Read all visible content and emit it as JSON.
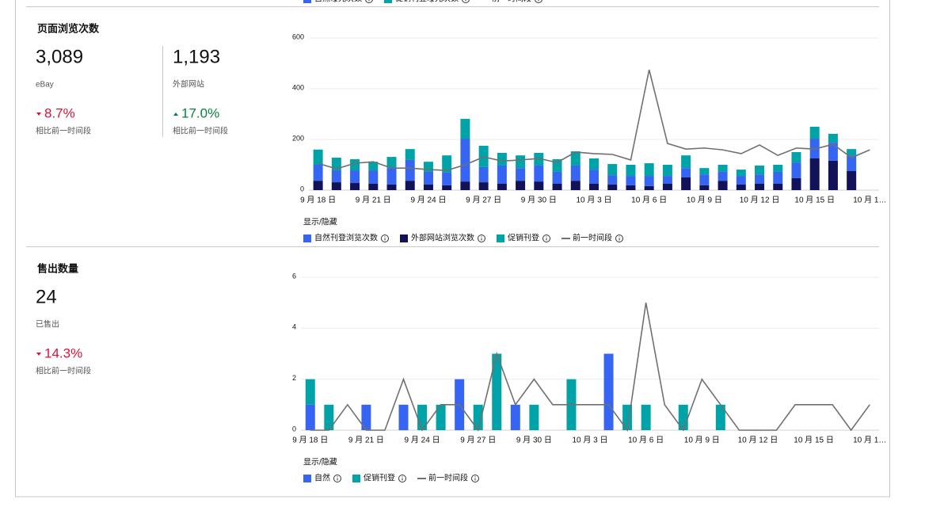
{
  "top_legend": [
    {
      "name": "自然曝光次数",
      "color": "#3665f3",
      "kind": "bar"
    },
    {
      "name": "促销刊登曝光次数",
      "color": "#00a3a7",
      "kind": "bar"
    },
    {
      "name": "前一时间段",
      "color": "#707070",
      "kind": "line"
    }
  ],
  "page_views": {
    "title": "页面浏览次数",
    "metrics": [
      {
        "value": "3,089",
        "source": "eBay",
        "change": "8.7%",
        "direction": "down",
        "compare": "相比前一时间段"
      },
      {
        "value": "1,193",
        "source": "外部网站",
        "change": "17.0%",
        "direction": "up",
        "compare": "相比前一时间段"
      }
    ]
  },
  "items_sold": {
    "title": "售出数量",
    "metrics": [
      {
        "value": "24",
        "source": "已售出",
        "change": "14.3%",
        "direction": "down",
        "compare": "相比前一时间段"
      }
    ]
  },
  "chart_data": [
    {
      "type": "bar",
      "stacked": true,
      "grid": true,
      "legend_title": "显示/隐藏",
      "categories": [
        "9 月 18 日",
        null,
        null,
        "9 月 21 日",
        null,
        null,
        "9 月 24 日",
        null,
        null,
        "9 月 27 日",
        null,
        null,
        "9 月 30 日",
        null,
        null,
        "10 月 3 日",
        null,
        null,
        "10 月 6 日",
        null,
        null,
        "10 月 9 日",
        null,
        null,
        "10 月 12 日",
        null,
        null,
        "10 月 15 日",
        null,
        null,
        "10 月 1…"
      ],
      "ylim": [
        0,
        600
      ],
      "yticks": [
        0,
        200,
        400,
        600
      ],
      "series": [
        {
          "name": "外部网站浏览次数",
          "kind": "bar",
          "color": "#121258",
          "values": [
            37,
            31,
            28,
            25,
            22,
            37,
            22,
            19,
            34,
            31,
            25,
            37,
            34,
            25,
            37,
            25,
            22,
            19,
            16,
            25,
            50,
            19,
            37,
            22,
            25,
            25,
            47,
            125,
            116,
            75,
            null
          ]
        },
        {
          "name": "自然刊登浏览次数",
          "kind": "bar",
          "color": "#3665f3",
          "values": [
            63,
            47,
            50,
            53,
            65,
            82,
            50,
            50,
            169,
            60,
            72,
            50,
            63,
            47,
            60,
            56,
            37,
            37,
            40,
            31,
            37,
            43,
            35,
            34,
            37,
            47,
            62,
            78,
            71,
            62,
            null
          ]
        },
        {
          "name": "促销刊登",
          "kind": "bar",
          "color": "#00a3a7",
          "values": [
            60,
            50,
            44,
            34,
            44,
            43,
            40,
            68,
            78,
            84,
            50,
            50,
            50,
            50,
            56,
            44,
            44,
            44,
            50,
            44,
            50,
            25,
            28,
            25,
            35,
            28,
            41,
            47,
            35,
            25,
            null
          ]
        },
        {
          "name": "前一时间段",
          "kind": "line",
          "color": "#707070",
          "values": [
            106,
            84,
            106,
            112,
            87,
            87,
            81,
            78,
            100,
            131,
            115,
            119,
            125,
            109,
            150,
            144,
            141,
            119,
            475,
            184,
            162,
            166,
            159,
            144,
            178,
            137,
            166,
            162,
            181,
            128,
            159
          ]
        }
      ],
      "legend_order": [
        1,
        0,
        2,
        3
      ]
    },
    {
      "type": "bar",
      "stacked": true,
      "grid": true,
      "legend_title": "显示/隐藏",
      "categories": [
        "9 月 18 日",
        null,
        null,
        "9 月 21 日",
        null,
        null,
        "9 月 24 日",
        null,
        null,
        "9 月 27 日",
        null,
        null,
        "9 月 30 日",
        null,
        null,
        "10 月 3 日",
        null,
        null,
        "10 月 6 日",
        null,
        null,
        "10 月 9 日",
        null,
        null,
        "10 月 12 日",
        null,
        null,
        "10 月 15 日",
        null,
        null,
        "10 月 1…"
      ],
      "ylim": [
        0,
        6
      ],
      "yticks": [
        0,
        2,
        4,
        6
      ],
      "series": [
        {
          "name": "自然",
          "kind": "bar",
          "color": "#3665f3",
          "values": [
            1,
            0,
            0,
            1,
            0,
            1,
            0,
            0,
            2,
            0,
            0,
            1,
            0,
            0,
            0,
            0,
            3,
            0,
            0,
            0,
            0,
            0,
            0,
            0,
            0,
            0,
            0,
            0,
            0,
            0,
            0
          ]
        },
        {
          "name": "促销刊登",
          "kind": "bar",
          "color": "#00a3a7",
          "values": [
            1,
            1,
            0,
            0,
            0,
            0,
            1,
            1,
            0,
            1,
            3,
            0,
            1,
            0,
            2,
            0,
            0,
            1,
            1,
            0,
            1,
            0,
            1,
            0,
            0,
            0,
            0,
            0,
            0,
            0,
            0
          ]
        },
        {
          "name": "前一时间段",
          "kind": "line",
          "color": "#707070",
          "values": [
            0,
            0,
            1,
            0,
            0,
            2,
            0,
            1,
            1,
            0,
            3,
            1,
            2,
            1,
            1,
            1,
            1,
            0,
            5,
            1,
            0,
            2,
            1,
            0,
            0,
            0,
            1,
            1,
            1,
            0,
            1
          ]
        }
      ],
      "legend_order": [
        0,
        1,
        2
      ]
    }
  ]
}
